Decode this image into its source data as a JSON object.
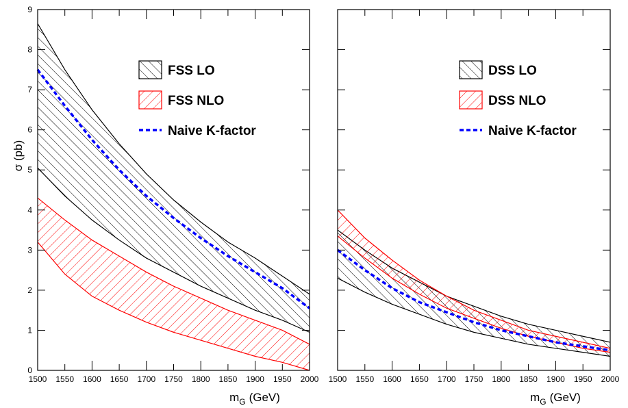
{
  "chart_data": [
    {
      "type": "band-line",
      "ylabel": "σ (pb)",
      "xlabel": {
        "main": "m",
        "sub": "G",
        "rest": "(GeV)"
      },
      "x": [
        1500,
        1550,
        1600,
        1650,
        1700,
        1750,
        1800,
        1850,
        1900,
        1950,
        2000
      ],
      "xlim": [
        1500,
        2000
      ],
      "xticks": [
        1500,
        1550,
        1600,
        1650,
        1700,
        1750,
        1800,
        1850,
        1900,
        1950,
        2000
      ],
      "ylim": [
        0,
        9
      ],
      "yticks": [
        0,
        1,
        2,
        3,
        4,
        5,
        6,
        7,
        8,
        9
      ],
      "show_ytick_labels": true,
      "series": [
        {
          "name": "FSS LO",
          "kind": "band",
          "hatch": "backslash",
          "color": "#000000",
          "upper": [
            8.65,
            7.5,
            6.5,
            5.65,
            4.9,
            4.25,
            3.7,
            3.2,
            2.8,
            2.35,
            1.9
          ],
          "lower": [
            5.05,
            4.35,
            3.75,
            3.25,
            2.8,
            2.45,
            2.1,
            1.8,
            1.5,
            1.25,
            0.95
          ]
        },
        {
          "name": "FSS NLO",
          "kind": "band",
          "hatch": "slash",
          "color": "#ff0000",
          "upper": [
            4.3,
            3.75,
            3.25,
            2.85,
            2.45,
            2.1,
            1.8,
            1.5,
            1.25,
            1.0,
            0.65
          ],
          "lower": [
            3.2,
            2.4,
            1.85,
            1.5,
            1.2,
            0.95,
            0.75,
            0.55,
            0.35,
            0.2,
            0.0
          ]
        },
        {
          "name": "Naive K-factor",
          "kind": "line",
          "dashed": true,
          "color": "#0000ff",
          "values": [
            7.5,
            6.6,
            5.75,
            5.0,
            4.35,
            3.8,
            3.3,
            2.85,
            2.45,
            2.05,
            1.55
          ]
        }
      ]
    },
    {
      "type": "band-line",
      "xlabel": {
        "main": "m",
        "sub": "G",
        "rest": "(GeV)"
      },
      "x": [
        1500,
        1550,
        1600,
        1650,
        1700,
        1750,
        1800,
        1850,
        1900,
        1950,
        2000
      ],
      "xlim": [
        1500,
        2000
      ],
      "xticks": [
        1500,
        1550,
        1600,
        1650,
        1700,
        1750,
        1800,
        1850,
        1900,
        1950,
        2000
      ],
      "ylim": [
        0,
        9
      ],
      "yticks": [
        0,
        1,
        2,
        3,
        4,
        5,
        6,
        7,
        8,
        9
      ],
      "show_ytick_labels": false,
      "series": [
        {
          "name": "DSS LO",
          "kind": "band",
          "hatch": "backslash",
          "color": "#000000",
          "upper": [
            3.5,
            3.0,
            2.55,
            2.2,
            1.85,
            1.6,
            1.35,
            1.15,
            1.0,
            0.85,
            0.7
          ],
          "lower": [
            2.3,
            1.95,
            1.65,
            1.4,
            1.15,
            0.95,
            0.8,
            0.65,
            0.55,
            0.45,
            0.35
          ]
        },
        {
          "name": "DSS NLO",
          "kind": "band",
          "hatch": "slash",
          "color": "#ff0000",
          "upper": [
            4.0,
            3.3,
            2.75,
            2.25,
            1.85,
            1.5,
            1.25,
            1.0,
            0.85,
            0.7,
            0.55
          ],
          "lower": [
            3.35,
            2.8,
            2.3,
            1.9,
            1.55,
            1.3,
            1.05,
            0.85,
            0.7,
            0.55,
            0.45
          ]
        },
        {
          "name": "Naive K-factor",
          "kind": "line",
          "dashed": true,
          "color": "#0000ff",
          "values": [
            3.0,
            2.5,
            2.05,
            1.7,
            1.45,
            1.2,
            1.0,
            0.85,
            0.7,
            0.6,
            0.5
          ]
        }
      ]
    }
  ]
}
